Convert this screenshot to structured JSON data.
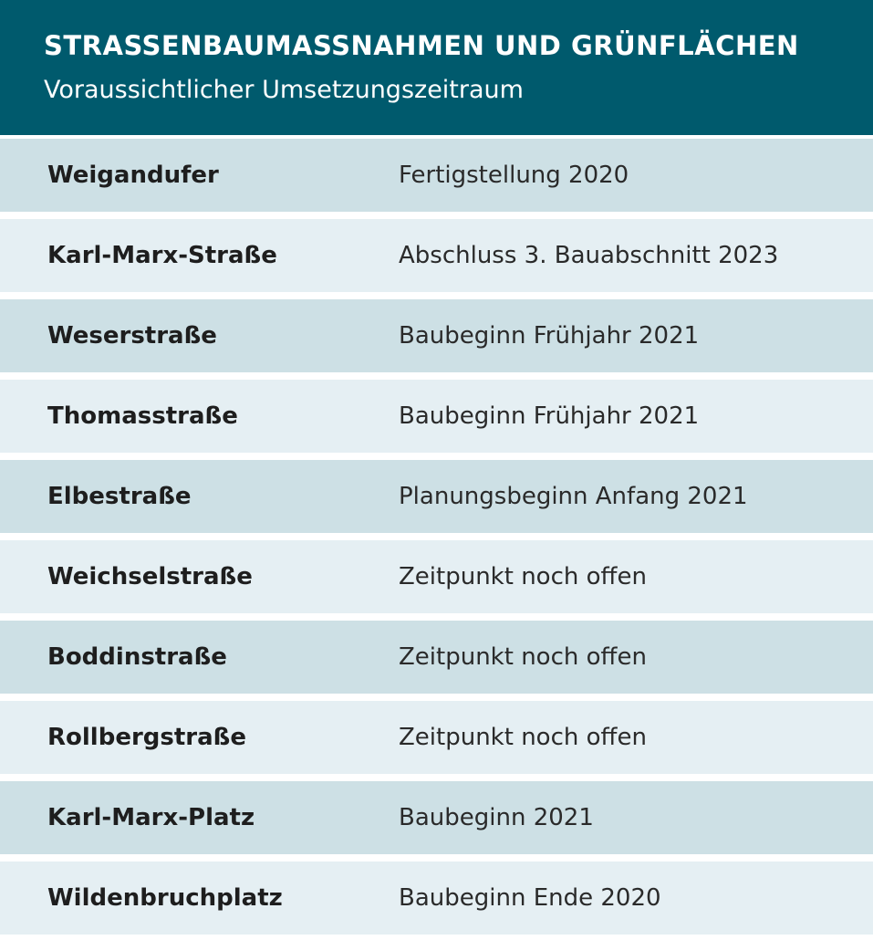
{
  "header": {
    "title": "STRASSENBAUMASSNAHMEN UND GRÜNFLÄCHEN",
    "subtitle": "Voraussichtlicher Umsetzungszeitraum"
  },
  "rows": [
    {
      "name": "Weigandufer",
      "status": "Fertigstellung 2020"
    },
    {
      "name": "Karl-Marx-Straße",
      "status": "Abschluss 3. Bauabschnitt 2023"
    },
    {
      "name": "Weserstraße",
      "status": "Baubeginn Frühjahr 2021"
    },
    {
      "name": "Thomasstraße",
      "status": "Baubeginn Frühjahr 2021"
    },
    {
      "name": "Elbestraße",
      "status": "Planungsbeginn Anfang 2021"
    },
    {
      "name": "Weichselstraße",
      "status": "Zeitpunkt noch offen"
    },
    {
      "name": "Boddinstraße",
      "status": "Zeitpunkt noch offen"
    },
    {
      "name": "Rollbergstraße",
      "status": "Zeitpunkt noch offen"
    },
    {
      "name": "Karl-Marx-Platz",
      "status": "Baubeginn 2021"
    },
    {
      "name": "Wildenbruchplatz",
      "status": "Baubeginn Ende 2020"
    }
  ],
  "colors": {
    "header_bg": "#005a6d",
    "row_dark": "#cde0e5",
    "row_light": "#e5eff3"
  }
}
